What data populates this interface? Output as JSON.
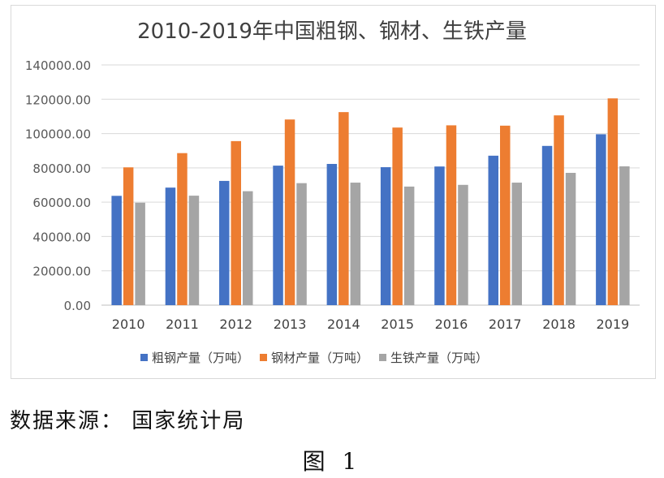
{
  "chart_data": {
    "type": "bar",
    "title": "2010-2019年中国粗钢、钢材、生铁产量",
    "categories": [
      "2010",
      "2011",
      "2012",
      "2013",
      "2014",
      "2015",
      "2016",
      "2017",
      "2018",
      "2019"
    ],
    "series": [
      {
        "name": "粗钢产量（万吨）",
        "color": "#4472c4",
        "values": [
          63700,
          68500,
          72400,
          81300,
          82300,
          80400,
          80800,
          87100,
          92800,
          99600
        ]
      },
      {
        "name": "钢材产量（万吨）",
        "color": "#ed7d31",
        "values": [
          80300,
          88600,
          95600,
          108200,
          112500,
          103500,
          104800,
          104600,
          110600,
          120500
        ]
      },
      {
        "name": "生铁产量（万吨）",
        "color": "#a5a5a5",
        "values": [
          59700,
          63800,
          66400,
          71100,
          71400,
          69100,
          70100,
          71400,
          77100,
          80900
        ]
      }
    ],
    "yticks": [
      "0.00",
      "20000.00",
      "40000.00",
      "60000.00",
      "80000.00",
      "100000.00",
      "120000.00",
      "140000.00"
    ],
    "ylim": [
      0,
      140000
    ],
    "grid": true,
    "legend_position": "bottom"
  },
  "source_text": "数据来源： 国家统计局",
  "figure_label": "图 1"
}
